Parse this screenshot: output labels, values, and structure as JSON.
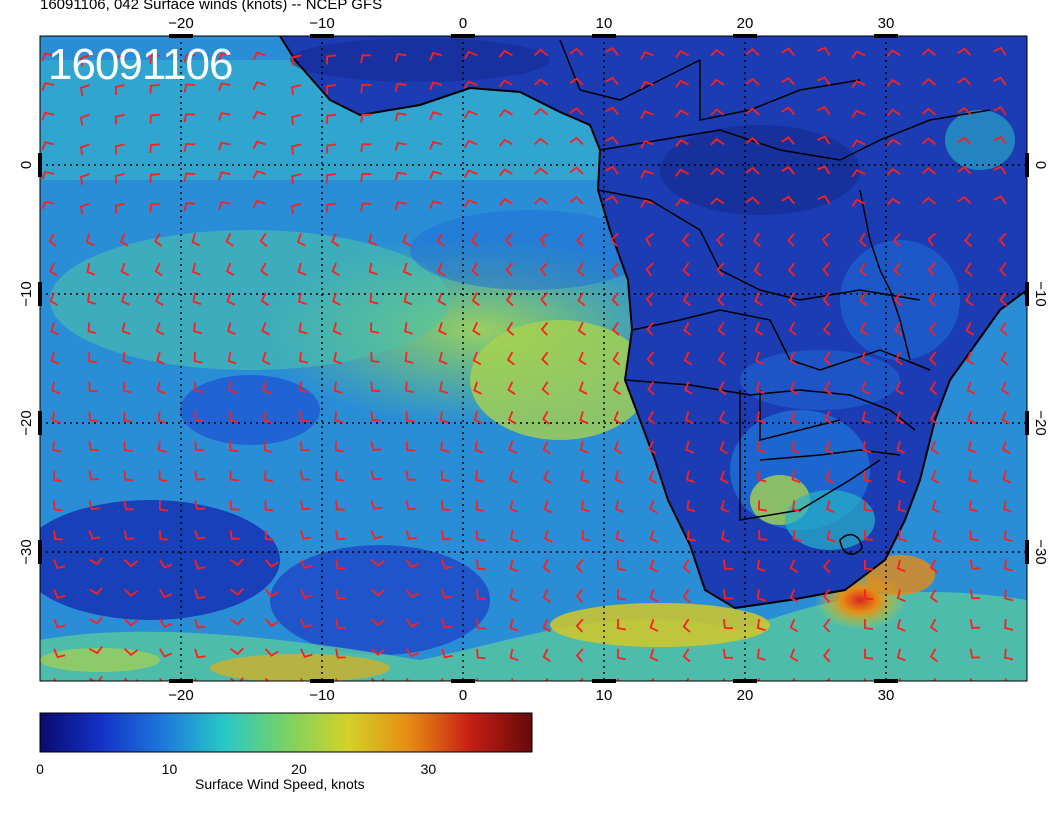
{
  "title": "16091106, 042 Surface winds (knots) -- NCEP GFS",
  "stamp": "16091106",
  "axes": {
    "lon_ticks": [
      -20,
      -10,
      0,
      10,
      20,
      30
    ],
    "lat_ticks": [
      0,
      -10,
      -20,
      -30
    ],
    "lon_range": [
      -30,
      40
    ],
    "lat_range": [
      -40,
      10
    ]
  },
  "colorbar": {
    "label": "Surface Wind Speed, knots",
    "ticks": [
      0,
      10,
      20,
      30
    ],
    "range": [
      0,
      38
    ],
    "colors": [
      "#0a0a6e",
      "#1432c8",
      "#1e78dc",
      "#28c8c8",
      "#78d264",
      "#d2d228",
      "#e68c14",
      "#c81e14",
      "#640a0a"
    ]
  },
  "colors": {
    "barbs": "#ff1e1e",
    "coastline": "#000000",
    "grid": "#000000"
  }
}
